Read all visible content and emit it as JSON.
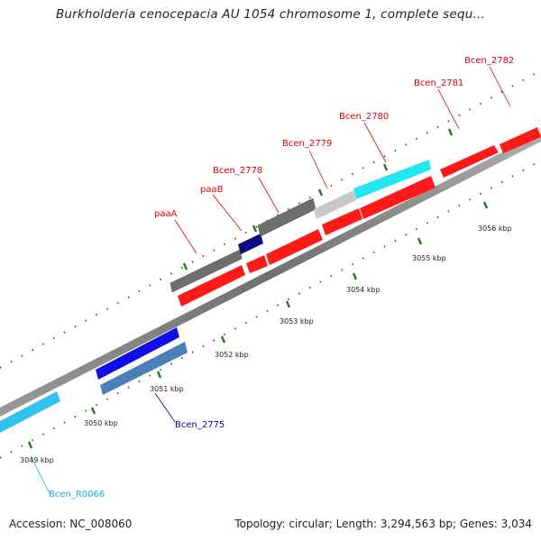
{
  "title": "Burkholderia cenocepacia AU 1054 chromosome 1, complete sequ...",
  "footer": {
    "accession": "Accession: NC_008060",
    "summary": "Topology: circular; Length: 3,294,563 bp; Genes: 3,034"
  },
  "colors": {
    "cds_red": "#ff1a1a",
    "gene_gray": "#6e6e6e",
    "gene_lightgray": "#c8c8c8",
    "navy": "#0d0d80",
    "blue": "#1010e6",
    "steelblue": "#4a7fb8",
    "cyan": "#22e6f0",
    "lightblue": "#33c2f0",
    "tick_green": "#1f7a1f",
    "label_red": "#dd0000",
    "label_blue": "#0000aa",
    "label_cyan": "#1aaee0"
  },
  "scale_labels": [
    "3049 kbp",
    "3050 kbp",
    "3051 kbp",
    "3052 kbp",
    "3053 kbp",
    "3054 kbp",
    "3055 kbp",
    "3056 kbp"
  ],
  "gene_labels": [
    {
      "text": "paaA",
      "color": "label_red"
    },
    {
      "text": "paaB",
      "color": "label_red"
    },
    {
      "text": "Bcen_2778",
      "color": "label_red"
    },
    {
      "text": "Bcen_2779",
      "color": "label_red"
    },
    {
      "text": "Bcen_2780",
      "color": "label_red"
    },
    {
      "text": "Bcen_2781",
      "color": "label_red"
    },
    {
      "text": "Bcen_2782",
      "color": "label_red"
    },
    {
      "text": "Bcen_2775",
      "color": "label_blue"
    },
    {
      "text": "Bcen_R0066",
      "color": "label_cyan"
    }
  ]
}
